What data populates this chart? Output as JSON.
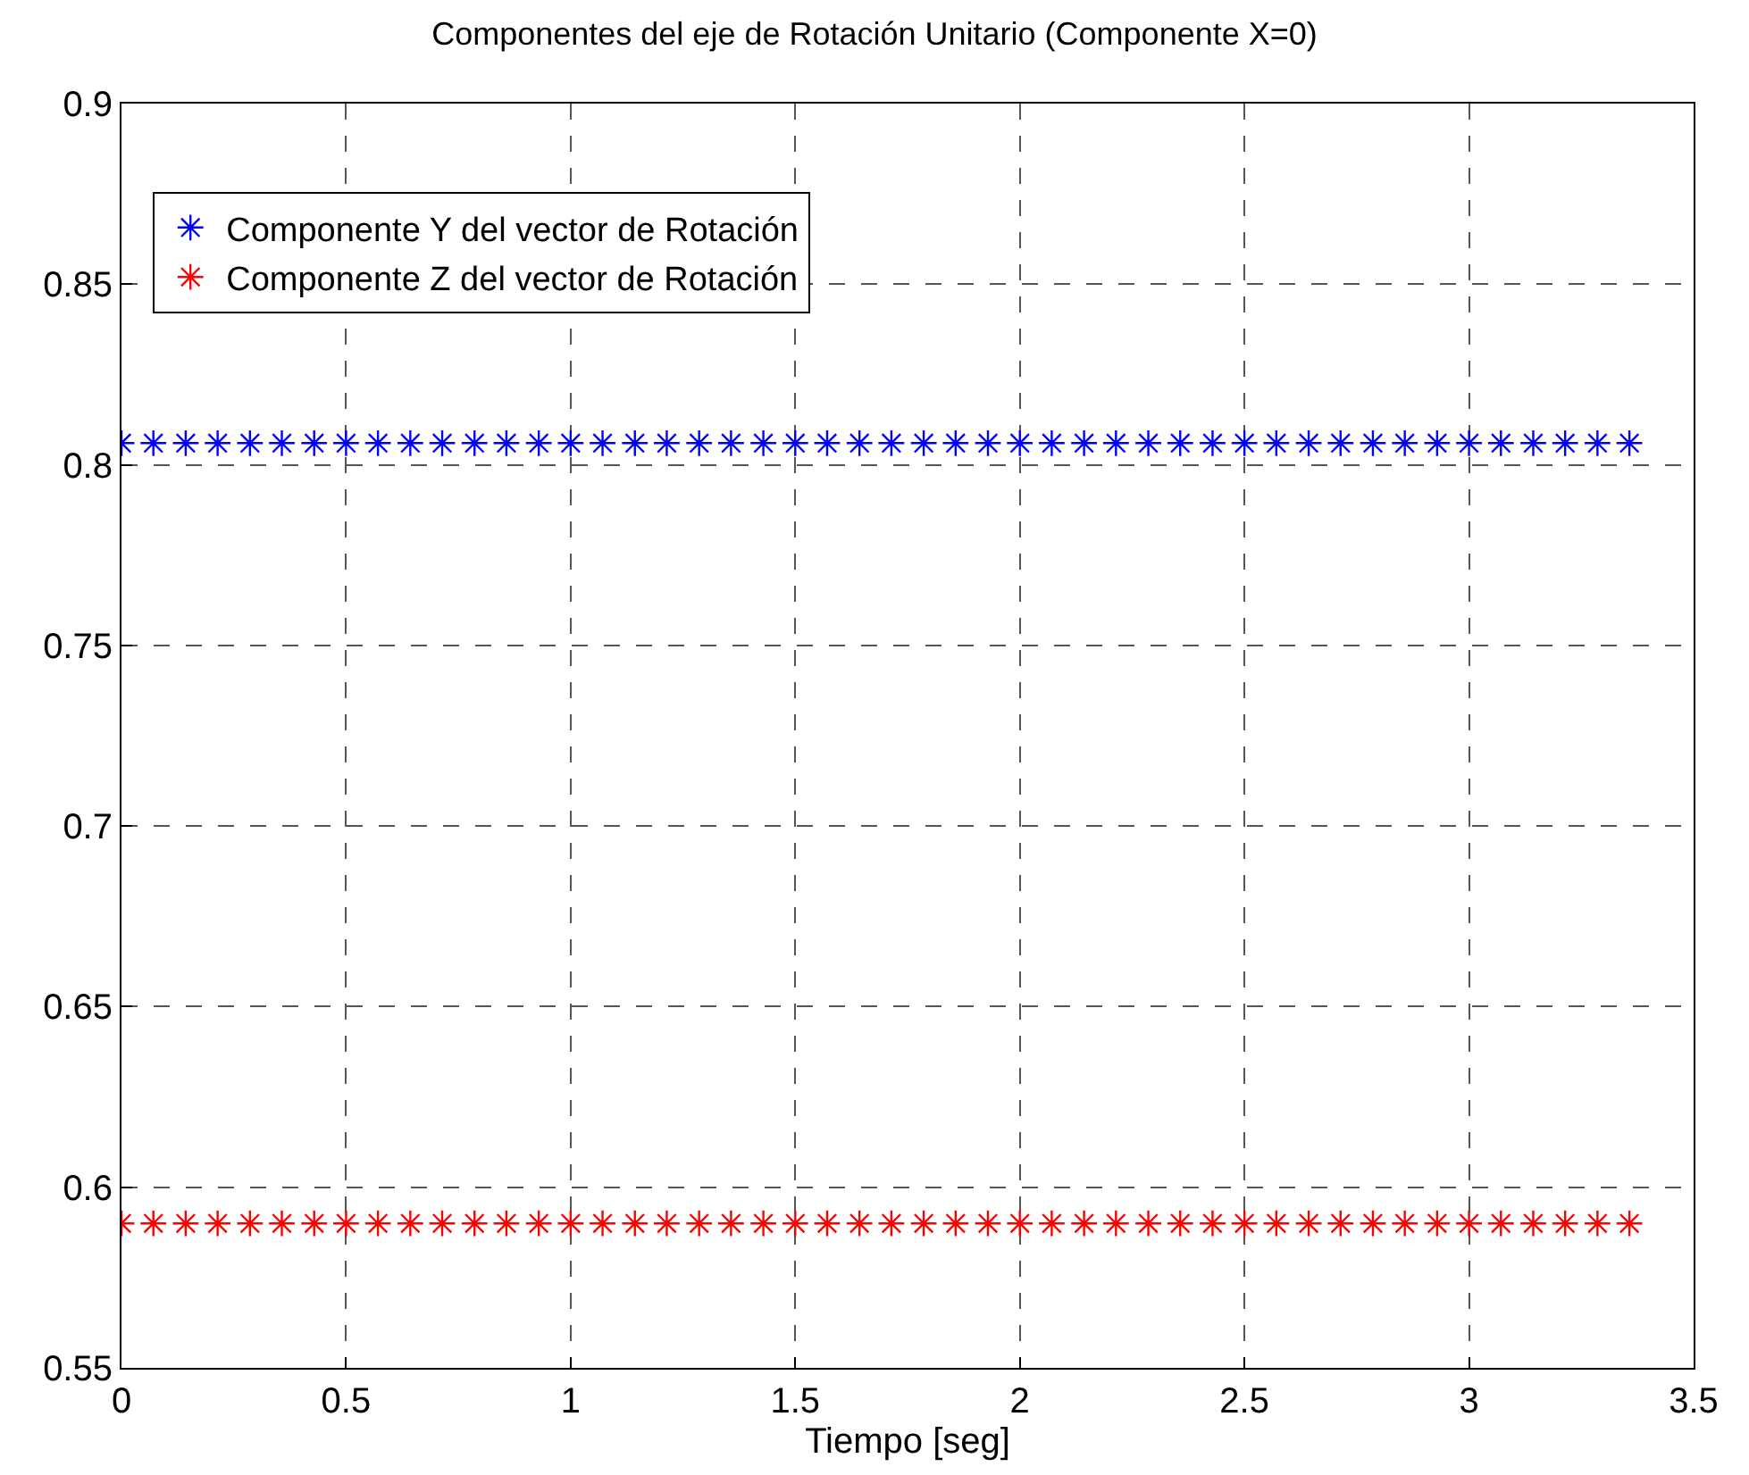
{
  "chart_data": {
    "type": "scatter",
    "title": "Componentes del eje de Rotación Unitario (Componente X=0)",
    "xlabel": "Tiempo [seg]",
    "x": [
      0,
      0.071,
      0.143,
      0.214,
      0.286,
      0.357,
      0.429,
      0.5,
      0.571,
      0.643,
      0.714,
      0.786,
      0.857,
      0.929,
      1.0,
      1.071,
      1.143,
      1.214,
      1.286,
      1.357,
      1.429,
      1.5,
      1.571,
      1.643,
      1.714,
      1.786,
      1.857,
      1.929,
      2.0,
      2.071,
      2.143,
      2.214,
      2.286,
      2.357,
      2.429,
      2.5,
      2.571,
      2.643,
      2.714,
      2.786,
      2.857,
      2.929,
      3.0,
      3.071,
      3.143,
      3.214,
      3.286,
      3.357
    ],
    "series": [
      {
        "name": "Componente Y del vector de Rotación",
        "color": "#0000ff",
        "values": [
          0.806,
          0.806,
          0.806,
          0.806,
          0.806,
          0.806,
          0.806,
          0.806,
          0.806,
          0.806,
          0.806,
          0.806,
          0.806,
          0.806,
          0.806,
          0.806,
          0.806,
          0.806,
          0.806,
          0.806,
          0.806,
          0.806,
          0.806,
          0.806,
          0.806,
          0.806,
          0.806,
          0.806,
          0.806,
          0.806,
          0.806,
          0.806,
          0.806,
          0.806,
          0.806,
          0.806,
          0.806,
          0.806,
          0.806,
          0.806,
          0.806,
          0.806,
          0.806,
          0.806,
          0.806,
          0.806,
          0.806,
          0.806
        ]
      },
      {
        "name": "Componente Z del vector de Rotación",
        "color": "#ff0000",
        "values": [
          0.59,
          0.59,
          0.59,
          0.59,
          0.59,
          0.59,
          0.59,
          0.59,
          0.59,
          0.59,
          0.59,
          0.59,
          0.59,
          0.59,
          0.59,
          0.59,
          0.59,
          0.59,
          0.59,
          0.59,
          0.59,
          0.59,
          0.59,
          0.59,
          0.59,
          0.59,
          0.59,
          0.59,
          0.59,
          0.59,
          0.59,
          0.59,
          0.59,
          0.59,
          0.59,
          0.59,
          0.59,
          0.59,
          0.59,
          0.59,
          0.59,
          0.59,
          0.59,
          0.59,
          0.59,
          0.59,
          0.59,
          0.59
        ]
      }
    ],
    "xlim": [
      0,
      3.5
    ],
    "xticks": [
      0,
      0.5,
      1,
      1.5,
      2,
      2.5,
      3,
      3.5
    ],
    "ylim": [
      0.55,
      0.9
    ],
    "yticks": [
      0.55,
      0.6,
      0.65,
      0.7,
      0.75,
      0.8,
      0.85,
      0.9
    ],
    "grid": true,
    "legend": "top left",
    "marker": "cross"
  }
}
